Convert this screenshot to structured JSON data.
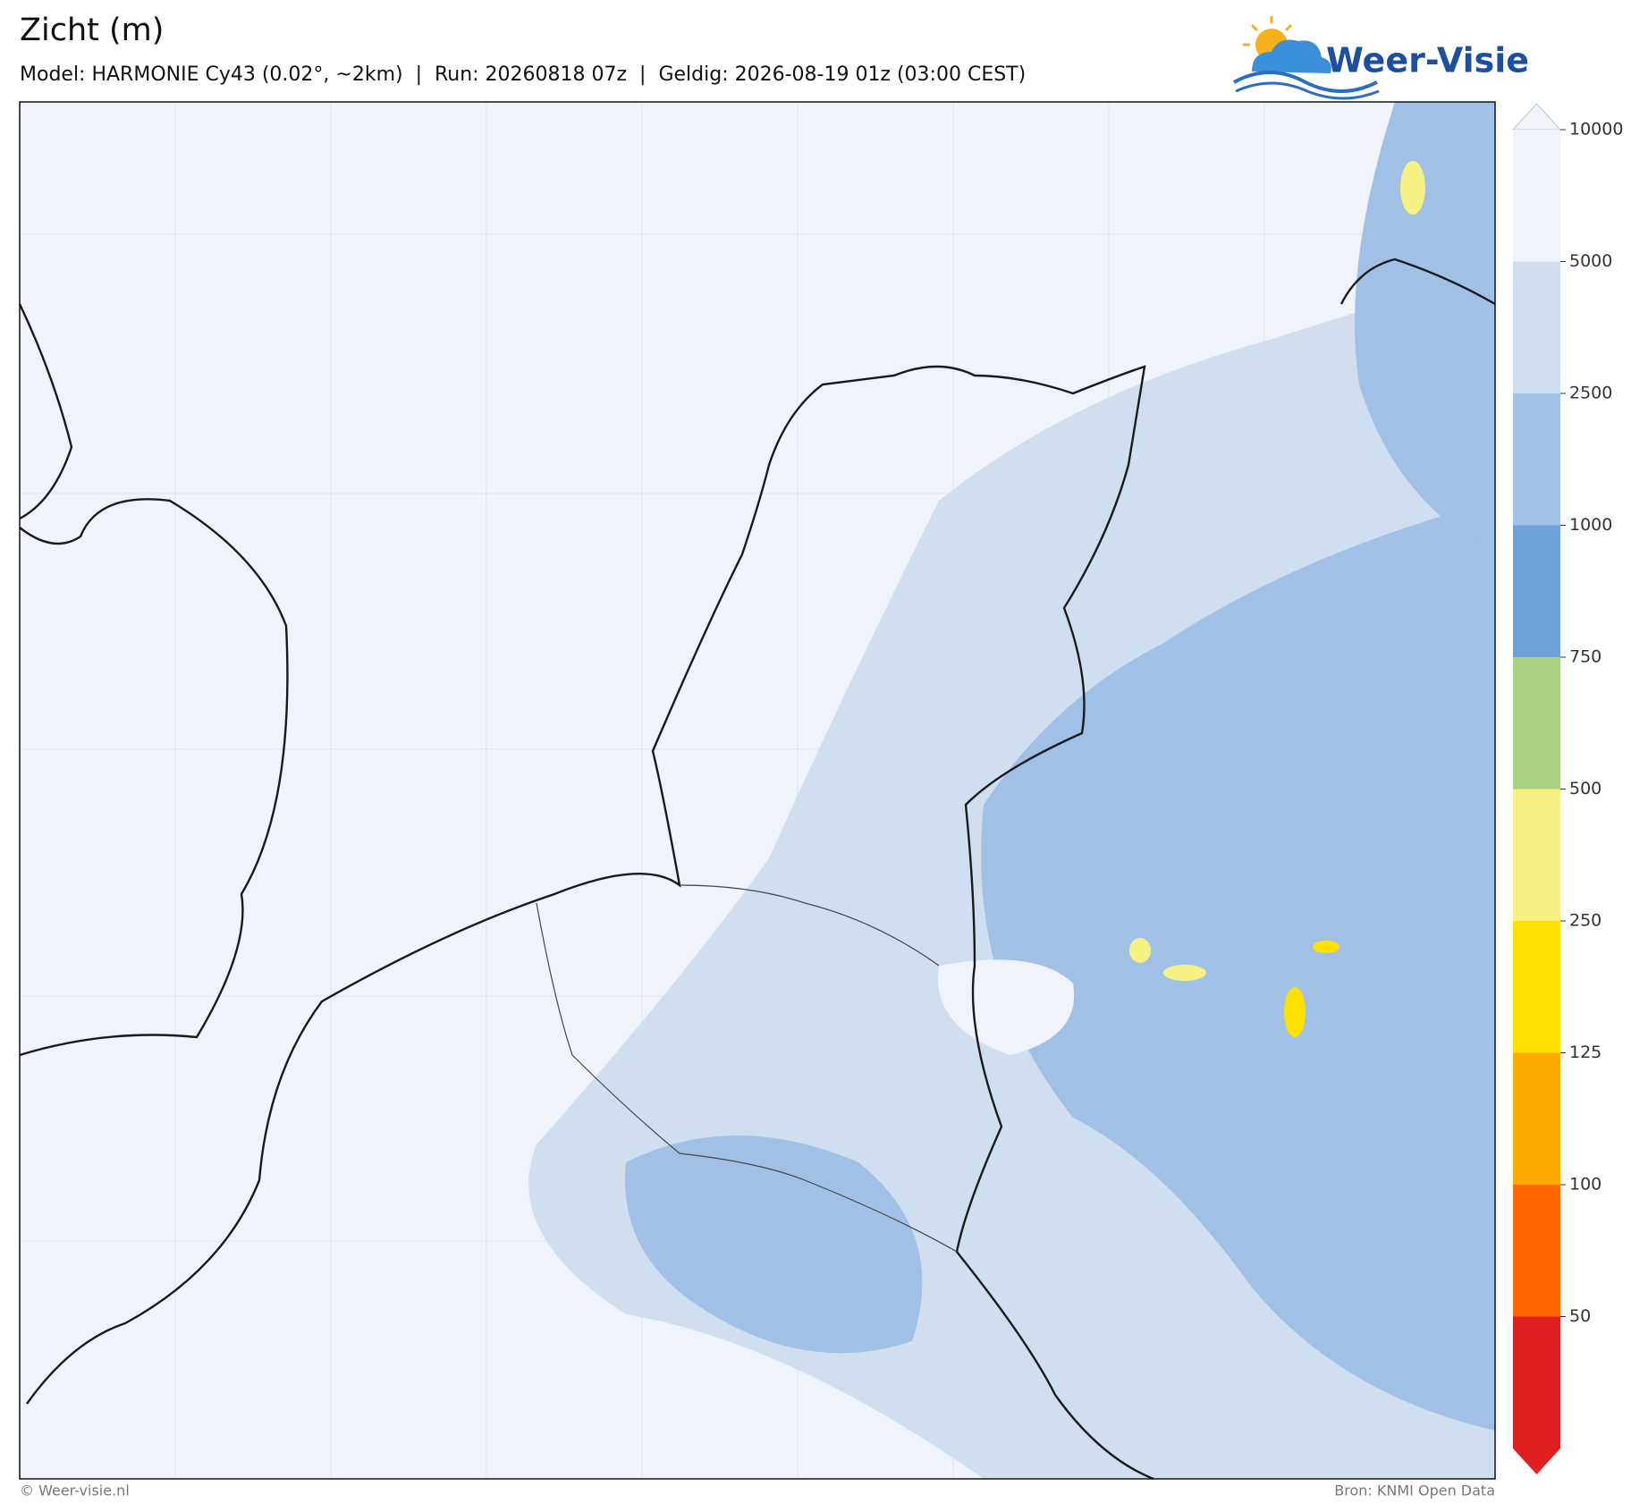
{
  "header": {
    "title": "Zicht (m)",
    "subtitle": "Model: HARMONIE Cy43 (0.02°, ~2km)  |  Run: 20260818 07z  |  Geldig: 2026-08-19 01z (03:00 CEST)"
  },
  "logo": {
    "text": "Weer-Visie"
  },
  "colorbar": {
    "ticks": [
      10000,
      5000,
      2500,
      1000,
      750,
      500,
      250,
      125,
      100,
      50
    ],
    "colors": [
      "#f0f4fa",
      "#f0f4fa",
      "#cfdff0",
      "#a0c0e6",
      "#6fa0da",
      "#a8d080",
      "#f5f283",
      "#ffe000",
      "#ffaa00",
      "#ff6600",
      "#e02020"
    ]
  },
  "footer": {
    "copyright": "© Weer-visie.nl",
    "source": "Bron: KNMI Open Data"
  }
}
